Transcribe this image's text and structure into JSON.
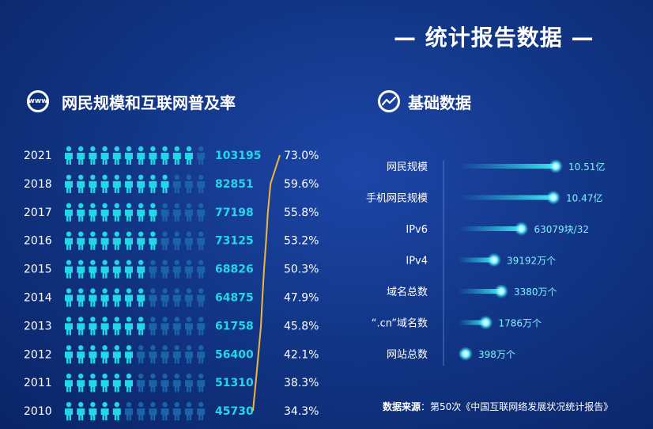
{
  "header": {
    "title": "— 统计报告数据 —"
  },
  "sections": {
    "left_title": "网民规模和互联网普及率",
    "right_title": "基础数据",
    "www_icon_text": "www"
  },
  "colors": {
    "person_active": "#22d8e8",
    "person_inactive": "#1b63a8",
    "rate_line": "#f0b83a",
    "bar": "#25d3e6"
  },
  "source": {
    "label": "数据来源",
    "text": "：第50次《中国互联网络发展状况统计报告》"
  },
  "chart_data": [
    {
      "type": "pictograph",
      "title": "网民规模和互联网普及率",
      "rows": [
        {
          "year": "2021",
          "users": "103195",
          "rate": "73.0%",
          "rate_value": 73.0
        },
        {
          "year": "2018",
          "users": "82851",
          "rate": "59.6%",
          "rate_value": 59.6
        },
        {
          "year": "2017",
          "users": "77198",
          "rate": "55.8%",
          "rate_value": 55.8
        },
        {
          "year": "2016",
          "users": "73125",
          "rate": "53.2%",
          "rate_value": 53.2
        },
        {
          "year": "2015",
          "users": "68826",
          "rate": "50.3%",
          "rate_value": 50.3
        },
        {
          "year": "2014",
          "users": "64875",
          "rate": "47.9%",
          "rate_value": 47.9
        },
        {
          "year": "2013",
          "users": "61758",
          "rate": "45.8%",
          "rate_value": 45.8
        },
        {
          "year": "2012",
          "users": "56400",
          "rate": "42.1%",
          "rate_value": 42.1
        },
        {
          "year": "2011",
          "users": "51310",
          "rate": "38.3%",
          "rate_value": 38.3
        },
        {
          "year": "2010",
          "users": "45730",
          "rate": "34.3%",
          "rate_value": 34.3
        }
      ],
      "icons_per_row": 12
    },
    {
      "type": "bar",
      "title": "基础数据",
      "categories": [
        "网民规模",
        "手机网民规模",
        "IPv6",
        "IPv4",
        "域名总数",
        "“.cn”域名数",
        "网站总数"
      ],
      "labels": [
        "10.51亿",
        "10.47亿",
        "63079块/32",
        "39192万个",
        "3380万个",
        "1786万个",
        "398万个"
      ],
      "values": [
        0.82,
        0.8,
        0.53,
        0.3,
        0.36,
        0.23,
        0.06
      ]
    }
  ]
}
